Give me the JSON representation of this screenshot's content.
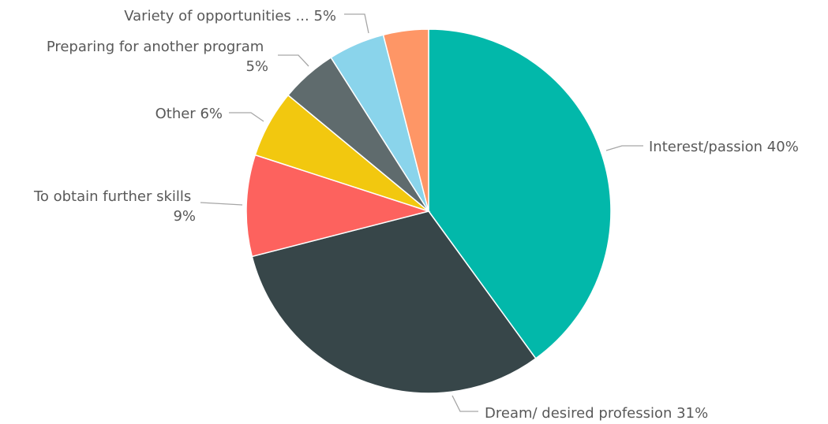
{
  "chart_data": {
    "type": "pie",
    "start_angle_deg": 0,
    "direction": "clockwise",
    "slices": [
      {
        "label": "Interest/passion",
        "value": 40,
        "pct_label": "40%",
        "color": "#02b8aa"
      },
      {
        "label": "Dream/ desired profession",
        "value": 31,
        "pct_label": "31%",
        "color": "#374649"
      },
      {
        "label": "To obtain further skills",
        "value": 9,
        "pct_label": "9%",
        "color": "#fd625e"
      },
      {
        "label": "Other",
        "value": 6,
        "pct_label": "6%",
        "color": "#f2c80f"
      },
      {
        "label": "Preparing for another program",
        "value": 5,
        "pct_label": "5%",
        "color": "#5f6b6d"
      },
      {
        "label": "Variety of opportunities ...",
        "value": 5,
        "pct_label": "5%",
        "color": "#8ad4eb"
      },
      {
        "label": "",
        "value": 4,
        "pct_label": "",
        "color": "#fe9666"
      }
    ]
  }
}
